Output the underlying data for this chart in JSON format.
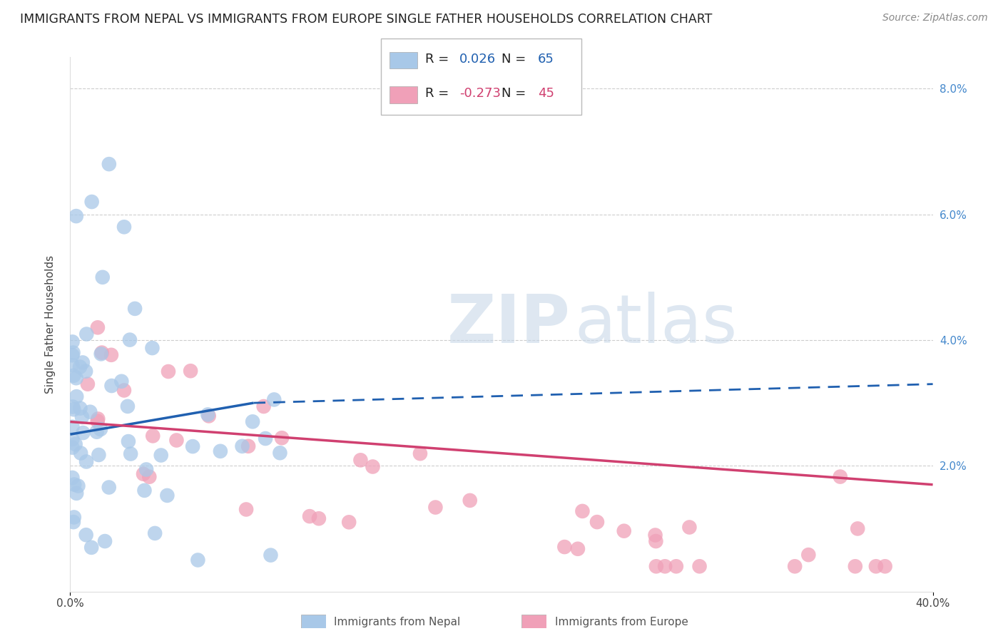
{
  "title": "IMMIGRANTS FROM NEPAL VS IMMIGRANTS FROM EUROPE SINGLE FATHER HOUSEHOLDS CORRELATION CHART",
  "source": "Source: ZipAtlas.com",
  "ylabel": "Single Father Households",
  "xlim": [
    0.0,
    0.4
  ],
  "ylim": [
    0.0,
    0.085
  ],
  "yticks": [
    0.02,
    0.04,
    0.06,
    0.08
  ],
  "ytick_labels": [
    "2.0%",
    "4.0%",
    "6.0%",
    "8.0%"
  ],
  "nepal_R": 0.026,
  "nepal_N": 65,
  "europe_R": -0.273,
  "europe_N": 45,
  "nepal_color": "#a8c8e8",
  "nepal_line_color": "#2060b0",
  "europe_color": "#f0a0b8",
  "europe_line_color": "#d04070",
  "background_color": "#ffffff",
  "grid_color": "#c8c8c8",
  "watermark_color": "#c8d8e8",
  "title_fontsize": 12.5,
  "legend_fontsize": 13,
  "axis_label_fontsize": 11,
  "tick_fontsize": 11,
  "source_fontsize": 10,
  "nepal_line_solid_end": 0.085,
  "nepal_line_dashed_start": 0.085
}
